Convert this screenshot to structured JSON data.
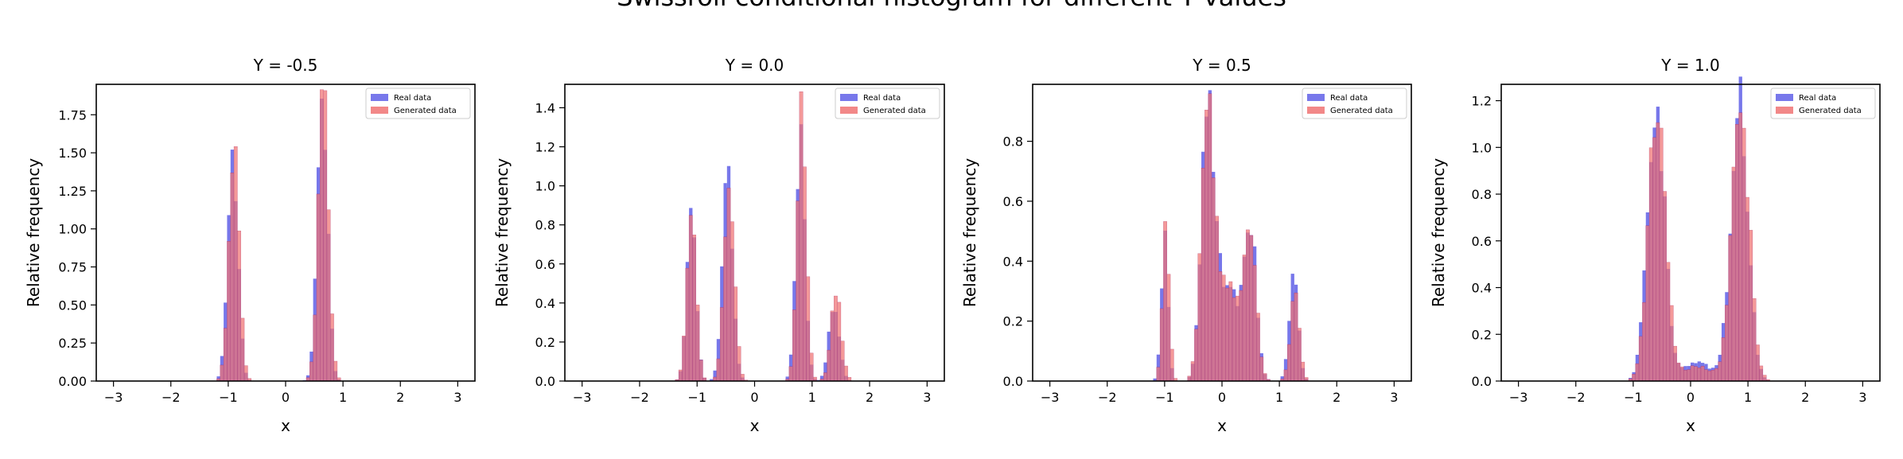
{
  "figure_title": "Swissroll conditional histogram for different Y values",
  "colors": {
    "real": "#5a5ae6",
    "generated": "#f07373",
    "overlap": "#b4235a"
  },
  "legend": {
    "real": "Real data",
    "generated": "Generated data"
  },
  "chart_data": [
    {
      "type": "bar",
      "title": "Y = -0.5",
      "xlabel": "x",
      "ylabel": "Relative frequency",
      "xlim": [
        -3.3,
        3.3
      ],
      "ylim": [
        0,
        1.95
      ],
      "xticks": [
        -3,
        -2,
        -1,
        0,
        1,
        2,
        3
      ],
      "yticks": [
        0,
        0.25,
        0.5,
        0.75,
        1.0,
        1.25,
        1.5,
        1.75
      ],
      "ytick_labels": [
        "0.00",
        "0.25",
        "0.50",
        "0.75",
        "1.00",
        "1.25",
        "1.50",
        "1.75"
      ],
      "bin_width": 0.06,
      "legend_position": "upper right",
      "series": [
        {
          "name": "Real data",
          "components": [
            [
              -0.92,
              0.09,
              0.34
            ],
            [
              0.64,
              0.09,
              0.42
            ]
          ]
        },
        {
          "name": "Generated data",
          "components": [
            [
              -0.9,
              0.09,
              0.35
            ],
            [
              0.66,
              0.09,
              0.42
            ]
          ]
        }
      ]
    },
    {
      "type": "bar",
      "title": "Y = 0.0",
      "xlabel": "x",
      "ylabel": "Relative frequency",
      "xlim": [
        -3.3,
        3.3
      ],
      "ylim": [
        0,
        1.52
      ],
      "xticks": [
        -3,
        -2,
        -1,
        0,
        1,
        2,
        3
      ],
      "yticks": [
        0,
        0.2,
        0.4,
        0.6,
        0.8,
        1.0,
        1.2,
        1.4
      ],
      "ytick_labels": [
        "0.0",
        "0.2",
        "0.4",
        "0.6",
        "0.8",
        "1.0",
        "1.2",
        "1.4"
      ],
      "bin_width": 0.06,
      "legend_position": "upper right",
      "series": [
        {
          "name": "Real data",
          "components": [
            [
              -1.1,
              0.08,
              0.19
            ],
            [
              -0.47,
              0.09,
              0.25
            ],
            [
              0.8,
              0.08,
              0.26
            ],
            [
              1.38,
              0.09,
              0.09
            ]
          ]
        },
        {
          "name": "Generated data",
          "components": [
            [
              -1.1,
              0.08,
              0.19
            ],
            [
              -0.44,
              0.09,
              0.22
            ],
            [
              0.82,
              0.08,
              0.28
            ],
            [
              1.42,
              0.09,
              0.1
            ]
          ]
        }
      ]
    },
    {
      "type": "bar",
      "title": "Y = 0.5",
      "xlabel": "x",
      "ylabel": "Relative frequency",
      "xlim": [
        -3.3,
        3.3
      ],
      "ylim": [
        0,
        0.99
      ],
      "xticks": [
        -3,
        -2,
        -1,
        0,
        1,
        2,
        3
      ],
      "yticks": [
        0,
        0.2,
        0.4,
        0.6,
        0.8
      ],
      "ytick_labels": [
        "0.0",
        "0.2",
        "0.4",
        "0.6",
        "0.8"
      ],
      "bin_width": 0.06,
      "legend_position": "upper right",
      "series": [
        {
          "name": "Real data",
          "components": [
            [
              -1.0,
              0.06,
              0.07
            ],
            [
              -0.25,
              0.11,
              0.24
            ],
            [
              0.1,
              0.22,
              0.18
            ],
            [
              0.5,
              0.1,
              0.12
            ],
            [
              1.25,
              0.08,
              0.07
            ]
          ]
        },
        {
          "name": "Generated data",
          "components": [
            [
              -0.98,
              0.06,
              0.08
            ],
            [
              -0.25,
              0.11,
              0.24
            ],
            [
              0.1,
              0.22,
              0.17
            ],
            [
              0.5,
              0.1,
              0.12
            ],
            [
              1.27,
              0.08,
              0.06
            ]
          ]
        }
      ]
    },
    {
      "type": "bar",
      "title": "Y = 1.0",
      "xlabel": "x",
      "ylabel": "Relative frequency",
      "xlim": [
        -3.3,
        3.3
      ],
      "ylim": [
        0,
        1.27
      ],
      "xticks": [
        -3,
        -2,
        -1,
        0,
        1,
        2,
        3
      ],
      "yticks": [
        0,
        0.2,
        0.4,
        0.6,
        0.8,
        1.0,
        1.2
      ],
      "ytick_labels": [
        "0.0",
        "0.2",
        "0.4",
        "0.6",
        "0.8",
        "1.0",
        "1.2"
      ],
      "bin_width": 0.06,
      "legend_position": "upper right",
      "series": [
        {
          "name": "Real data",
          "components": [
            [
              -0.6,
              0.15,
              0.45
            ],
            [
              0.85,
              0.15,
              0.45
            ],
            [
              0.12,
              0.25,
              0.05
            ]
          ]
        },
        {
          "name": "Generated data",
          "components": [
            [
              -0.58,
              0.15,
              0.46
            ],
            [
              0.87,
              0.15,
              0.45
            ],
            [
              0.12,
              0.25,
              0.04
            ]
          ]
        }
      ]
    }
  ]
}
